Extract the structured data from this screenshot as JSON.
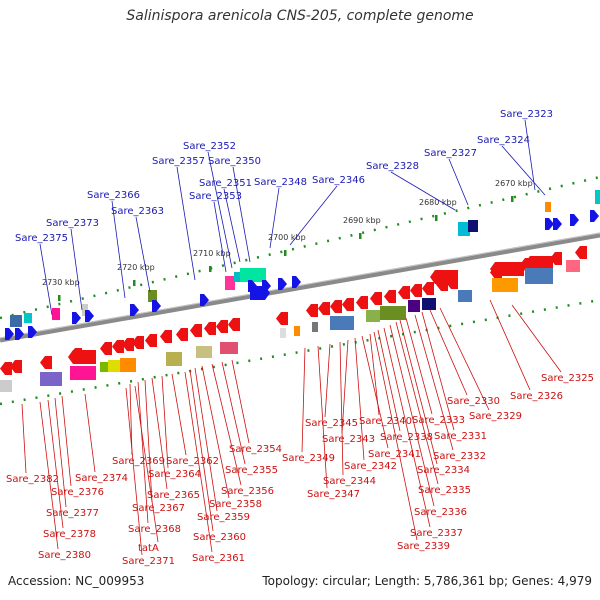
{
  "title": "Salinispora arenicola CNS-205, complete genome",
  "footer": {
    "accession": "Accession: NC_009953",
    "summary": "Topology: circular; Length: 5,786,361 bp; Genes: 4,979"
  },
  "scale_ticks": [
    "2670 kbp",
    "2680 kbp",
    "2690 kbp",
    "2700 kbp",
    "2710 kbp",
    "2720 kbp",
    "2730 kbp"
  ],
  "colors": {
    "forward_label": "#1a1ab4",
    "reverse_label": "#cc1111",
    "backbone": "#808080",
    "tick": "#228b22"
  },
  "forward_genes": [
    "Sare_2323",
    "Sare_2324",
    "Sare_2327",
    "Sare_2328",
    "Sare_2346",
    "Sare_2348",
    "Sare_2350",
    "Sare_2351",
    "Sare_2352",
    "Sare_2353",
    "Sare_2357",
    "Sare_2363",
    "Sare_2366",
    "Sare_2373",
    "Sare_2375"
  ],
  "reverse_genes": [
    "Sare_2325",
    "Sare_2326",
    "Sare_2329",
    "Sare_2330",
    "Sare_2331",
    "Sare_2332",
    "Sare_2333",
    "Sare_2334",
    "Sare_2335",
    "Sare_2336",
    "Sare_2337",
    "Sare_2338",
    "Sare_2339",
    "Sare_2340",
    "Sare_2341",
    "Sare_2342",
    "Sare_2343",
    "Sare_2344",
    "Sare_2345",
    "Sare_2347",
    "Sare_2349",
    "Sare_2354",
    "Sare_2355",
    "Sare_2356",
    "Sare_2358",
    "Sare_2359",
    "Sare_2360",
    "Sare_2361",
    "Sare_2362",
    "Sare_2364",
    "Sare_2365",
    "Sare_2367",
    "Sare_2368",
    "Sare_2369",
    "tatA",
    "Sare_2371",
    "Sare_2374",
    "Sare_2376",
    "Sare_2377",
    "Sare_2378",
    "Sare_2380",
    "Sare_2382"
  ]
}
